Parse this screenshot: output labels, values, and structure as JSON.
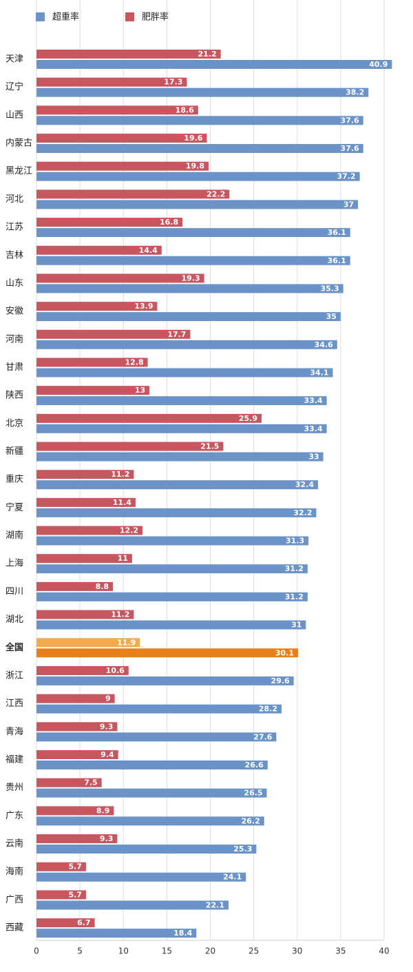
{
  "chart_data": {
    "type": "hbar",
    "categories": [
      "天津",
      "辽宁",
      "山西",
      "内蒙古",
      "黑龙江",
      "河北",
      "江苏",
      "吉林",
      "山东",
      "安徽",
      "河南",
      "甘肃",
      "陕西",
      "北京",
      "新疆",
      "重庆",
      "宁夏",
      "湖南",
      "上海",
      "四川",
      "湖北",
      "全国",
      "浙江",
      "江西",
      "青海",
      "福建",
      "贵州",
      "广东",
      "云南",
      "海南",
      "广西",
      "西藏"
    ],
    "series": [
      {
        "name": "超重率",
        "color": "#6b93c7",
        "values": [
          40.9,
          38.2,
          37.6,
          37.6,
          37.2,
          37,
          36.1,
          36.1,
          35.3,
          35,
          34.6,
          34.1,
          33.4,
          33.4,
          33,
          32.4,
          32.2,
          31.3,
          31.2,
          31.2,
          31,
          30.1,
          29.6,
          28.2,
          27.6,
          26.6,
          26.5,
          26.2,
          25.3,
          24.1,
          22.1,
          18.4
        ]
      },
      {
        "name": "肥胖率",
        "color": "#c9555f",
        "values": [
          21.2,
          17.3,
          18.6,
          19.6,
          19.8,
          22.2,
          16.8,
          14.4,
          19.3,
          13.9,
          17.7,
          12.8,
          13,
          25.9,
          21.5,
          11.2,
          11.4,
          12.2,
          11,
          8.8,
          11.2,
          11.9,
          10.6,
          9,
          9.3,
          9.4,
          7.5,
          8.9,
          9.3,
          5.7,
          5.7,
          6.7
        ]
      }
    ],
    "highlight": {
      "category": "全国",
      "colors": [
        "#e8801a",
        "#f4aa4c"
      ]
    },
    "xlim": [
      0,
      40
    ],
    "xticks": [
      0,
      5,
      10,
      15,
      20,
      25,
      30,
      35,
      40
    ],
    "grid": true
  }
}
